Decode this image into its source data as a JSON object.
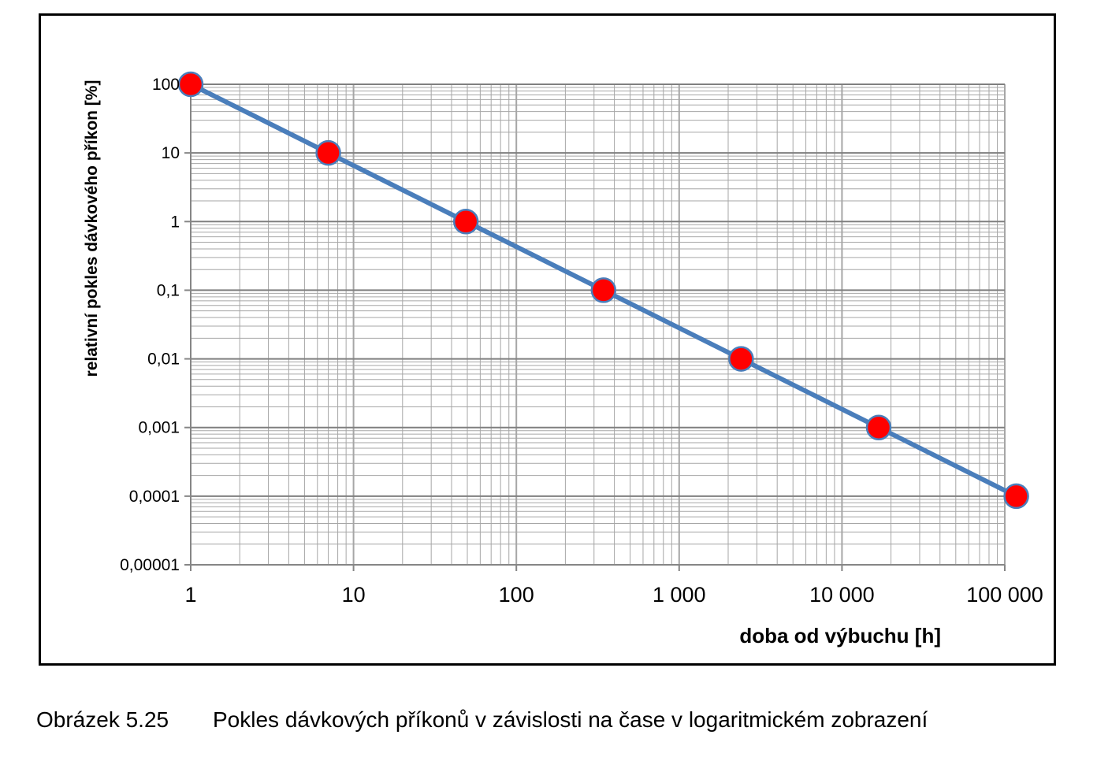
{
  "chart_data": {
    "type": "line",
    "x_scale": "log",
    "y_scale": "log",
    "xlim": [
      1,
      100000
    ],
    "ylim": [
      1e-05,
      100
    ],
    "xlabel": "doba od výbuchu [h]",
    "ylabel": "relativní pokles dávkového příkon [%]",
    "x_tick_labels": [
      "1",
      "10",
      "100",
      "1 000",
      "10 000",
      "100 000"
    ],
    "y_tick_labels": [
      "100",
      "10",
      "1",
      "0,1",
      "0,01",
      "0,001",
      "0,0001",
      "0,00001"
    ],
    "grid": true,
    "legend": "none",
    "series": [
      {
        "x": [
          1,
          7,
          49,
          343,
          2401,
          16807,
          117649
        ],
        "y": [
          100,
          10,
          1,
          0.1,
          0.01,
          0.001,
          0.0001
        ]
      }
    ],
    "colors": {
      "line": "#4a7ebb",
      "marker_fill": "#ff0000",
      "marker_stroke": "#4a7ebb",
      "grid": "#a6a6a6",
      "frame": "#000000"
    }
  },
  "caption": {
    "number": "Obrázek 5.25",
    "text": "Pokles dávkových příkonů v závislosti na čase v logaritmickém zobrazení"
  }
}
